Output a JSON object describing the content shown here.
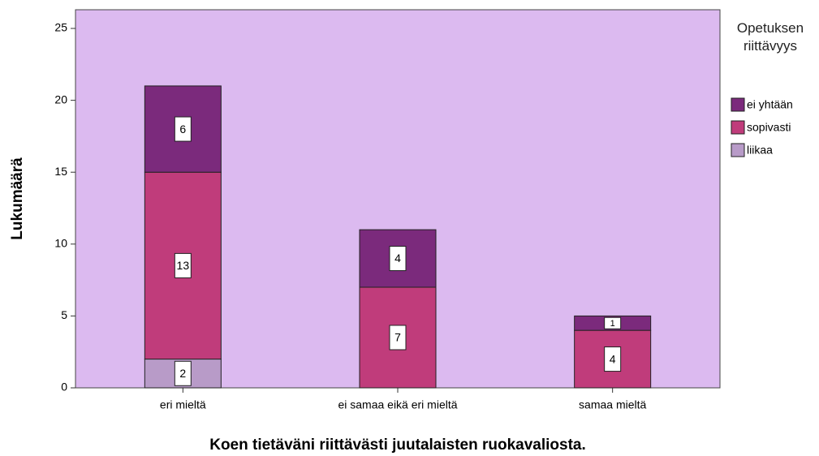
{
  "chart_data": {
    "type": "stacked_bar",
    "x_label": "Koen tietäväni riittävästi juutalaisten ruokavaliosta.",
    "y_label": "Lukumäärä",
    "legend_title": "Opetuksen riittävyys",
    "legend": "right",
    "categories": [
      "eri mieltä",
      "ei samaa eikä eri mieltä",
      "samaa mieltä"
    ],
    "series": [
      {
        "name": "ei yhtään",
        "color": "#7b2a7c",
        "values": [
          6,
          4,
          1
        ]
      },
      {
        "name": "sopivasti",
        "color": "#c03c7b",
        "values": [
          13,
          7,
          4
        ]
      },
      {
        "name": "liikaa",
        "color": "#b89bc8",
        "values": [
          2,
          0,
          0
        ]
      }
    ],
    "ylim": [
      0,
      26.3
    ],
    "yticks": [
      0,
      5,
      10,
      15,
      20,
      25
    ]
  }
}
